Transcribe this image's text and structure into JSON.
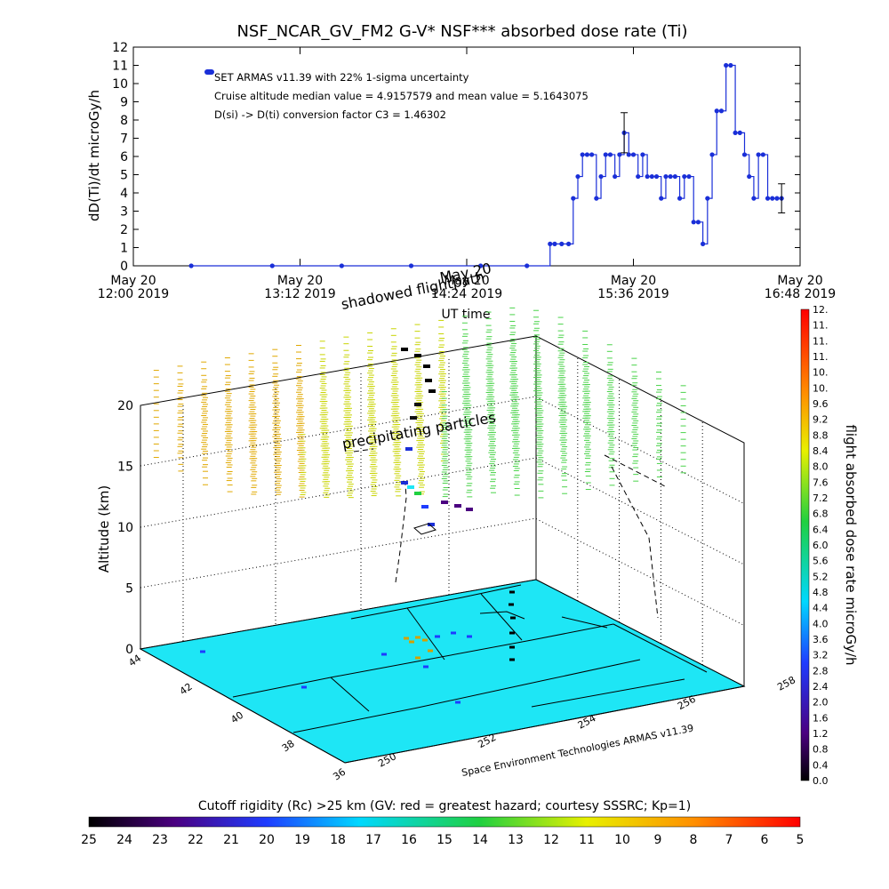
{
  "chart_data": [
    {
      "type": "line",
      "title": "NSF_NCAR_GV_FM2 G-V* NSF*** absorbed dose rate (Ti)",
      "xlabel": "UT time",
      "ylabel": "dD(Ti)/dt microGy/h",
      "ylim": [
        0,
        12
      ],
      "yticks": [
        "0",
        "1",
        "2",
        "3",
        "4",
        "5",
        "6",
        "7",
        "8",
        "9",
        "10",
        "11",
        "12"
      ],
      "xticks": [
        {
          "date": "May 20",
          "time": "12:00 2019"
        },
        {
          "date": "May 20",
          "time": "13:12 2019"
        },
        {
          "date": "May 20",
          "time": "14:24 2019"
        },
        {
          "date": "May 20",
          "time": "15:36 2019"
        },
        {
          "date": "May 20",
          "time": "16:48 2019"
        }
      ],
      "legend": "SET ARMAS v11.39 with 22% 1-sigma uncertainty",
      "annotations": [
        "Cruise altitude median value = 4.9157579 and mean value = 5.1643075",
        "D(si) -> D(ti) conversion factor C3 = 1.46302"
      ],
      "series": [
        {
          "x": [
            "12:25",
            "13:00",
            "13:30",
            "14:00",
            "14:30",
            "14:50",
            "15:00",
            "15:02",
            "15:05",
            "15:08",
            "15:10",
            "15:12",
            "15:14",
            "15:16",
            "15:18",
            "15:20",
            "15:22",
            "15:24",
            "15:26",
            "15:28",
            "15:30",
            "15:32",
            "15:34",
            "15:36",
            "15:38",
            "15:40",
            "15:42",
            "15:44",
            "15:46",
            "15:48",
            "15:50",
            "15:52",
            "15:54",
            "15:56",
            "15:58",
            "16:00",
            "16:02",
            "16:04",
            "16:06",
            "16:08",
            "16:10",
            "16:12",
            "16:14",
            "16:16",
            "16:18",
            "16:20",
            "16:22",
            "16:24",
            "16:26",
            "16:28",
            "16:30",
            "16:32",
            "16:34",
            "16:36",
            "16:38",
            "16:40"
          ],
          "y": [
            0,
            0,
            0,
            0,
            0,
            0,
            1.2,
            1.2,
            1.2,
            1.2,
            3.7,
            4.9,
            6.1,
            6.1,
            6.1,
            3.7,
            4.9,
            6.1,
            6.1,
            4.9,
            6.1,
            7.3,
            6.1,
            6.1,
            4.9,
            6.1,
            4.9,
            4.9,
            4.9,
            3.7,
            4.9,
            4.9,
            4.9,
            3.7,
            4.9,
            4.9,
            2.4,
            2.4,
            1.2,
            3.7,
            6.1,
            8.5,
            8.5,
            11.0,
            11.0,
            7.3,
            7.3,
            6.1,
            4.9,
            3.7,
            6.1,
            6.1,
            3.7,
            3.7,
            3.7,
            3.7
          ]
        }
      ]
    },
    {
      "type": "scatter",
      "xlabel": "",
      "ylabel": "Altitude (km)",
      "zlim": [
        0,
        20
      ],
      "zticks": [
        "0",
        "5",
        "10",
        "15",
        "20"
      ],
      "lat_ticks": [
        "36",
        "38",
        "40",
        "42",
        "44"
      ],
      "lon_ticks": [
        "250",
        "252",
        "254",
        "256",
        "258"
      ],
      "annotations": [
        "shadowed flightpath",
        "precipitating particles",
        "May 20"
      ],
      "credit": "Space Environment Technologies ARMAS v11.39",
      "colorbar_right": {
        "label": "flight absorbed dose rate microGy/h",
        "ticks": [
          "0.0",
          "0.4",
          "0.8",
          "1.2",
          "1.6",
          "2.0",
          "2.4",
          "2.8",
          "3.2",
          "3.6",
          "4.0",
          "4.4",
          "4.8",
          "5.2",
          "5.6",
          "6.0",
          "6.4",
          "6.8",
          "7.2",
          "7.6",
          "8.0",
          "8.4",
          "8.8",
          "9.2",
          "9.6",
          "10.",
          "10.",
          "11.",
          "11.",
          "11.",
          "12."
        ]
      },
      "colorbar_bottom": {
        "label": "Cutoff rigidity (Rc) >25 km (GV: red = greatest hazard; courtesy SSSRC; Kp=1)",
        "ticks": [
          "25",
          "24",
          "23",
          "22",
          "21",
          "20",
          "19",
          "18",
          "17",
          "16",
          "15",
          "14",
          "13",
          "12",
          "11",
          "10",
          "9",
          "8",
          "7",
          "6",
          "5"
        ]
      }
    }
  ]
}
